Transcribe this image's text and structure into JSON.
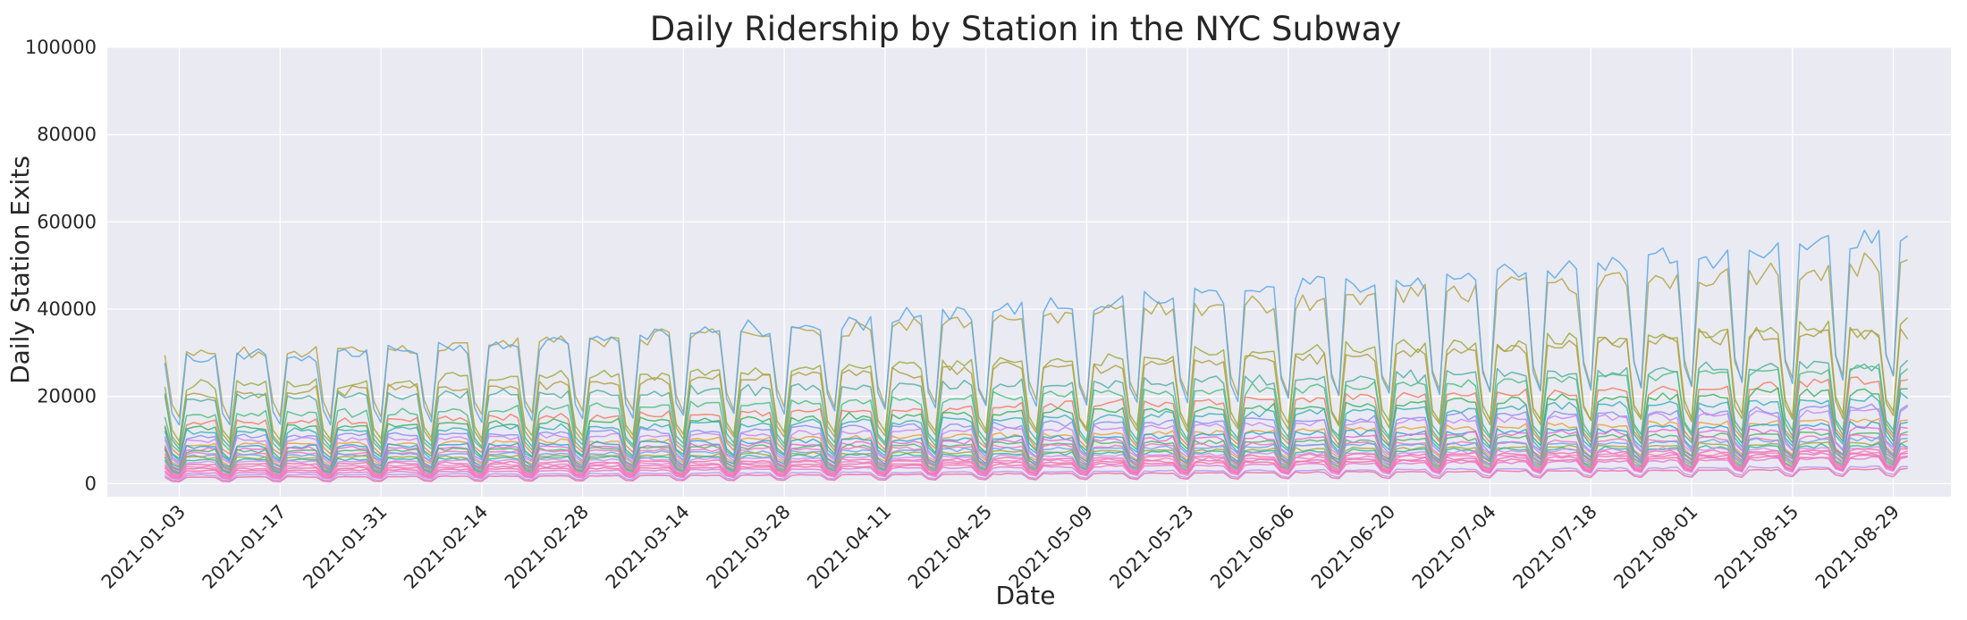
{
  "chart_data": {
    "type": "line",
    "title": "Daily Ridership by Station in the NYC Subway",
    "xlabel": "Date",
    "ylabel": "Daily Station Exits",
    "ylim": [
      -3000,
      100000
    ],
    "xlim": [
      "2020-12-24",
      "2021-09-06"
    ],
    "x_range": [
      "2021-01-01",
      "2021-08-31"
    ],
    "x_ticks": [
      "2021-01-03",
      "2021-01-17",
      "2021-01-31",
      "2021-02-14",
      "2021-02-28",
      "2021-03-14",
      "2021-03-28",
      "2021-04-11",
      "2021-04-25",
      "2021-05-09",
      "2021-05-23",
      "2021-06-06",
      "2021-06-20",
      "2021-07-04",
      "2021-07-18",
      "2021-08-01",
      "2021-08-15",
      "2021-08-29"
    ],
    "y_ticks": [
      0,
      20000,
      40000,
      60000,
      80000,
      100000
    ],
    "grid": true,
    "legend": "none",
    "background": "#eaeaf2",
    "grid_color": "#ffffff",
    "weekly_pattern": "weekday peaks, weekend troughs",
    "series": [
      {
        "color": "#b5a545",
        "weekday": [
          30000,
          52000
        ],
        "weekend": [
          18000,
          30000
        ]
      },
      {
        "color": "#5aa8e8",
        "weekday": [
          29000,
          58000
        ],
        "weekend": [
          16000,
          30000
        ]
      },
      {
        "color": "#9cab3c",
        "weekday": [
          23000,
          37000
        ],
        "weekend": [
          12000,
          20000
        ]
      },
      {
        "color": "#b0a040",
        "weekday": [
          21000,
          36000
        ],
        "weekend": [
          11000,
          19000
        ]
      },
      {
        "color": "#4fb0a0",
        "weekday": [
          20000,
          28000
        ],
        "weekend": [
          10000,
          15000
        ]
      },
      {
        "color": "#4cc07e",
        "weekday": [
          16000,
          27000
        ],
        "weekend": [
          9000,
          14000
        ]
      },
      {
        "color": "#f07e5e",
        "weekday": [
          14000,
          24000
        ],
        "weekend": [
          8000,
          13000
        ]
      },
      {
        "color": "#3bb45c",
        "weekday": [
          13000,
          22000
        ],
        "weekend": [
          7000,
          12000
        ]
      },
      {
        "color": "#38b3b8",
        "weekday": [
          12000,
          20000
        ],
        "weekend": [
          6500,
          11000
        ]
      },
      {
        "color": "#8f8ff0",
        "weekday": [
          11000,
          18000
        ],
        "weekend": [
          6000,
          10000
        ]
      },
      {
        "color": "#c88af0",
        "weekday": [
          10000,
          17000
        ],
        "weekend": [
          5500,
          9500
        ]
      },
      {
        "color": "#e7a33a",
        "weekday": [
          9000,
          15000
        ],
        "weekend": [
          5000,
          8500
        ]
      },
      {
        "color": "#2fa7d0",
        "weekday": [
          8500,
          14000
        ],
        "weekend": [
          4500,
          8000
        ]
      },
      {
        "color": "#e56bd1",
        "weekday": [
          8000,
          13000
        ],
        "weekend": [
          4000,
          7500
        ]
      },
      {
        "color": "#55b36c",
        "weekday": [
          7500,
          12000
        ],
        "weekend": [
          3800,
          7000
        ]
      },
      {
        "color": "#f477b7",
        "weekday": [
          7000,
          11000
        ],
        "weekend": [
          3500,
          6500
        ]
      },
      {
        "color": "#6aa6f0",
        "weekday": [
          6500,
          10500
        ],
        "weekend": [
          3200,
          6000
        ]
      },
      {
        "color": "#a8a83a",
        "weekday": [
          6000,
          9500
        ],
        "weekend": [
          3000,
          5500
        ]
      },
      {
        "color": "#33b9a0",
        "weekday": [
          5500,
          9000
        ],
        "weekend": [
          2800,
          5000
        ]
      },
      {
        "color": "#d58cf0",
        "weekday": [
          5000,
          8500
        ],
        "weekend": [
          2500,
          4800
        ]
      },
      {
        "color": "#f571a9",
        "weekday": [
          4500,
          8000
        ],
        "weekend": [
          2300,
          4500
        ]
      },
      {
        "color": "#f580c0",
        "weekday": [
          4000,
          7500
        ],
        "weekend": [
          2000,
          4200
        ]
      },
      {
        "color": "#ee72b6",
        "weekday": [
          3500,
          7000
        ],
        "weekend": [
          1800,
          4000
        ]
      },
      {
        "color": "#f66fa8",
        "weekday": [
          3000,
          6500
        ],
        "weekend": [
          1500,
          3800
        ]
      },
      {
        "color": "#e87ad0",
        "weekday": [
          2500,
          6000
        ],
        "weekend": [
          1200,
          3500
        ]
      },
      {
        "color": "#b998f2",
        "weekday": [
          2000,
          4000
        ],
        "weekend": [
          800,
          2500
        ]
      },
      {
        "color": "#f26da2",
        "weekday": [
          1500,
          3500
        ],
        "weekend": [
          500,
          2000
        ]
      }
    ]
  }
}
